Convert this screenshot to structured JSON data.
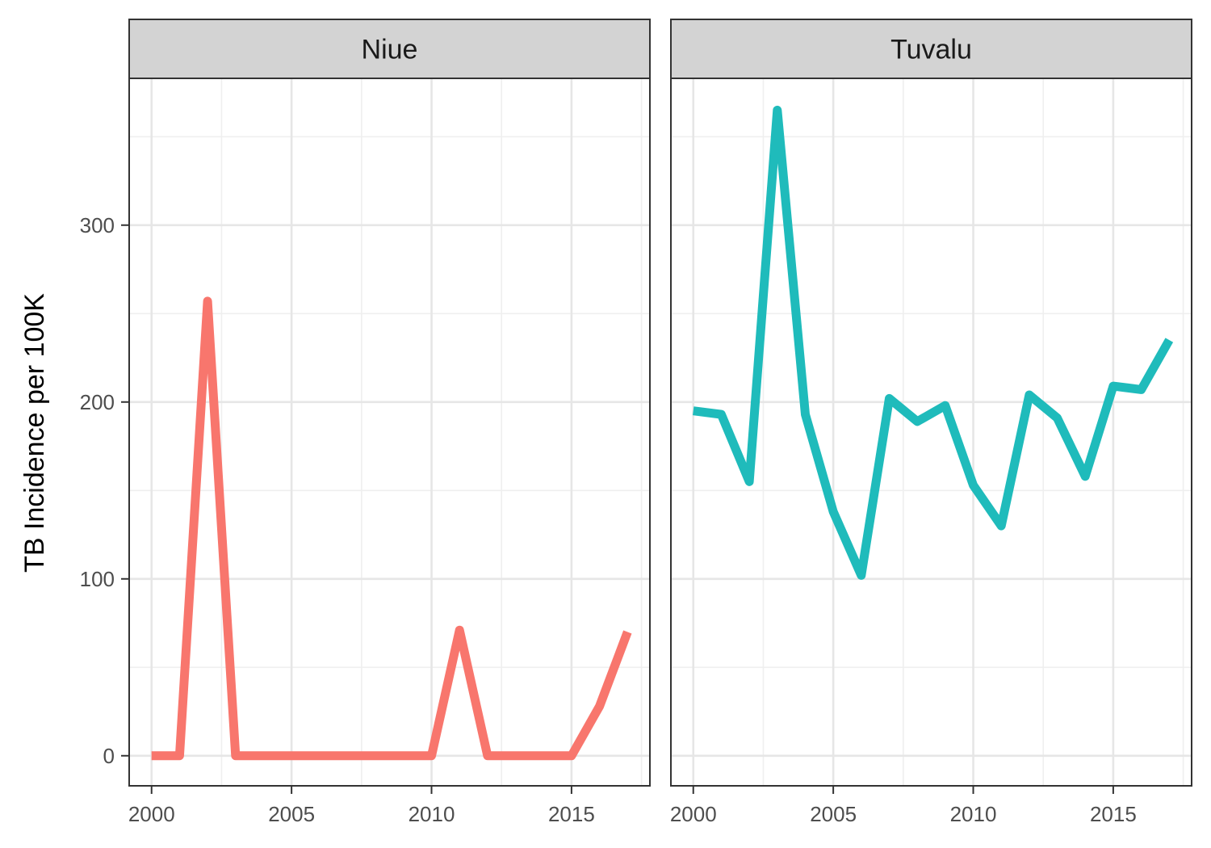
{
  "chart_data": {
    "type": "line",
    "ylabel": "TB Incidence per 100K",
    "xlabel": "",
    "xlim": [
      1999.2,
      2017.8
    ],
    "ylim": [
      -17,
      383
    ],
    "x_ticks": [
      2000,
      2005,
      2010,
      2015
    ],
    "y_ticks": [
      0,
      100,
      200,
      300
    ],
    "grid": true,
    "legend": "none",
    "panels": [
      {
        "name": "Niue",
        "color": "#F8766D",
        "x": [
          2000,
          2001,
          2002,
          2003,
          2004,
          2005,
          2006,
          2007,
          2008,
          2009,
          2010,
          2011,
          2012,
          2013,
          2014,
          2015,
          2016,
          2017
        ],
        "y": [
          0,
          0,
          257,
          0,
          0,
          0,
          0,
          0,
          0,
          0,
          0,
          71,
          0,
          0,
          0,
          0,
          28,
          70
        ]
      },
      {
        "name": "Tuvalu",
        "color": "#1FBBBB",
        "x": [
          2000,
          2001,
          2002,
          2003,
          2004,
          2005,
          2006,
          2007,
          2008,
          2009,
          2010,
          2011,
          2012,
          2013,
          2014,
          2015,
          2016,
          2017
        ],
        "y": [
          195,
          193,
          155,
          365,
          193,
          138,
          102,
          202,
          189,
          198,
          153,
          130,
          204,
          191,
          158,
          209,
          207,
          235
        ]
      }
    ]
  }
}
